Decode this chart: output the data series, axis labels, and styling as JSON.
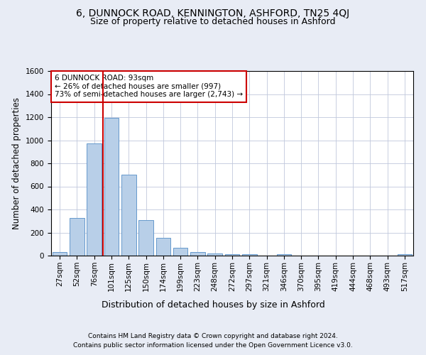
{
  "title1": "6, DUNNOCK ROAD, KENNINGTON, ASHFORD, TN25 4QJ",
  "title2": "Size of property relative to detached houses in Ashford",
  "xlabel": "Distribution of detached houses by size in Ashford",
  "ylabel": "Number of detached properties",
  "bar_labels": [
    "27sqm",
    "52sqm",
    "76sqm",
    "101sqm",
    "125sqm",
    "150sqm",
    "174sqm",
    "199sqm",
    "223sqm",
    "248sqm",
    "272sqm",
    "297sqm",
    "321sqm",
    "346sqm",
    "370sqm",
    "395sqm",
    "419sqm",
    "444sqm",
    "468sqm",
    "493sqm",
    "517sqm"
  ],
  "bar_values": [
    30,
    325,
    970,
    1195,
    700,
    305,
    155,
    70,
    28,
    20,
    15,
    15,
    0,
    15,
    0,
    0,
    0,
    0,
    0,
    0,
    15
  ],
  "bar_color": "#b8cfe8",
  "bar_edge_color": "#6699cc",
  "vline_color": "#cc0000",
  "annotation_text": "6 DUNNOCK ROAD: 93sqm\n← 26% of detached houses are smaller (997)\n73% of semi-detached houses are larger (2,743) →",
  "annotation_box_color": "#ffffff",
  "annotation_box_edge": "#cc0000",
  "ylim": [
    0,
    1600
  ],
  "yticks": [
    0,
    200,
    400,
    600,
    800,
    1000,
    1200,
    1400,
    1600
  ],
  "bg_color": "#e8ecf5",
  "plot_bg_color": "#ffffff",
  "footer1": "Contains HM Land Registry data © Crown copyright and database right 2024.",
  "footer2": "Contains public sector information licensed under the Open Government Licence v3.0.",
  "title1_fontsize": 10,
  "title2_fontsize": 9,
  "xlabel_fontsize": 9,
  "ylabel_fontsize": 8.5,
  "tick_fontsize": 7.5,
  "annotation_fontsize": 7.5,
  "footer_fontsize": 6.5
}
